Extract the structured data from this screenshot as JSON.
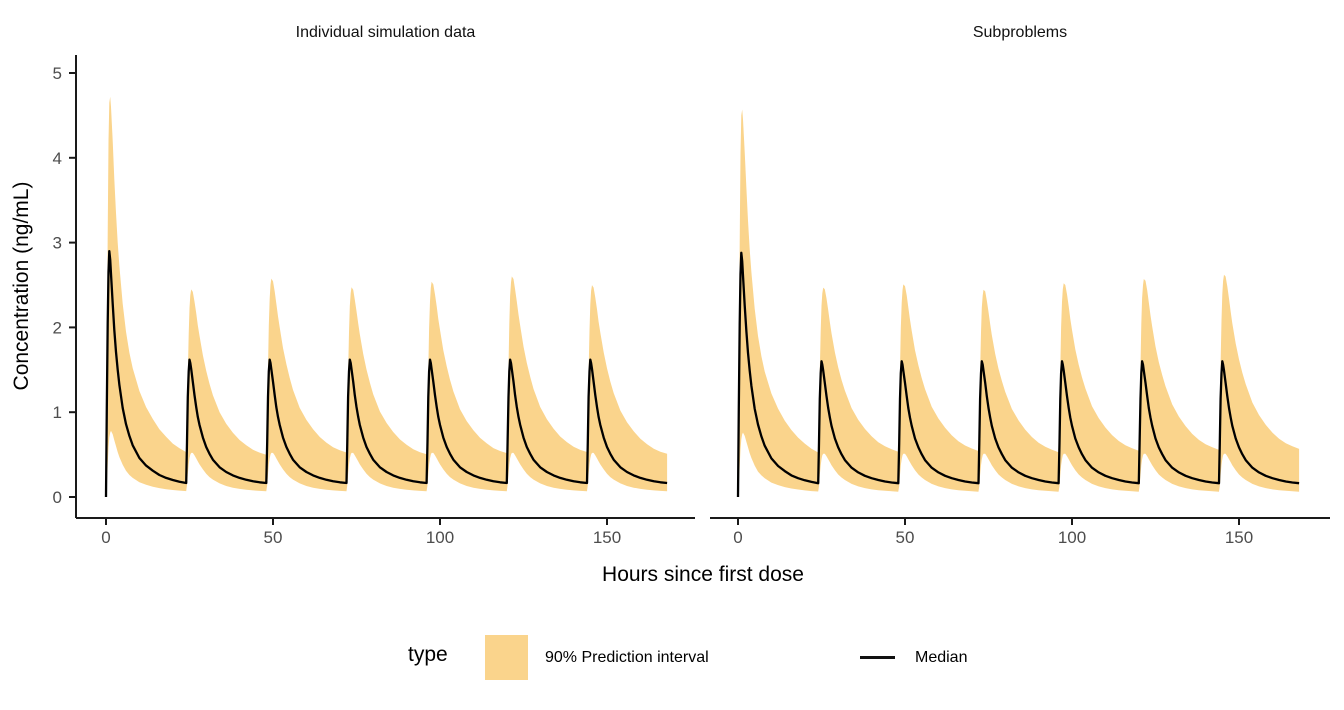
{
  "figure": {
    "facet_titles": [
      "Individual simulation data",
      "Subproblems"
    ],
    "x_title": "Hours since first dose",
    "y_title": "Concentration (ng/mL)",
    "legend": {
      "title": "type",
      "ribbon_label": "90% Prediction interval",
      "median_label": "Median"
    },
    "colors": {
      "ribbon": "#FAD48C",
      "median": "#000000",
      "axis": "#1A1A1A",
      "tick_label": "#4D4D4D"
    }
  },
  "chart_data": {
    "type": "area",
    "title": "",
    "xlabel": "Hours since first dose",
    "ylabel": "Concentration (ng/mL)",
    "xlim": [
      0,
      168
    ],
    "ylim": [
      0,
      5
    ],
    "x_ticks": [
      0,
      50,
      100,
      150
    ],
    "y_ticks": [
      0,
      1,
      2,
      3,
      4,
      5
    ],
    "grid": false,
    "legend_position": "bottom",
    "legend_entries": [
      "90% Prediction interval",
      "Median"
    ],
    "dose_interval_hours": 24,
    "dose_times": [
      0,
      24,
      48,
      72,
      96,
      120,
      144
    ],
    "t_rel": [
      0,
      0.25,
      0.5,
      0.75,
      1,
      1.25,
      1.5,
      2,
      2.5,
      3,
      3.5,
      4,
      5,
      6,
      7,
      8,
      10,
      12,
      14,
      16,
      18,
      20,
      22,
      24
    ],
    "panels": [
      {
        "title": "Individual simulation data",
        "series": {
          "median_first": [
            0,
            1.05,
            2.05,
            2.65,
            2.9,
            2.8,
            2.63,
            2.28,
            1.97,
            1.71,
            1.5,
            1.32,
            1.05,
            0.86,
            0.72,
            0.61,
            0.46,
            0.37,
            0.31,
            0.26,
            0.225,
            0.2,
            0.18,
            0.165
          ],
          "median_ss": [
            0.165,
            0.65,
            1.18,
            1.48,
            1.62,
            1.58,
            1.51,
            1.36,
            1.2,
            1.06,
            0.945,
            0.85,
            0.7,
            0.59,
            0.51,
            0.44,
            0.35,
            0.295,
            0.255,
            0.225,
            0.203,
            0.185,
            0.173,
            0.165
          ],
          "hi_first": [
            0.02,
            1.6,
            3.1,
            4.2,
            4.65,
            4.72,
            4.6,
            4.2,
            3.75,
            3.35,
            3.0,
            2.72,
            2.28,
            1.95,
            1.7,
            1.52,
            1.25,
            1.06,
            0.92,
            0.8,
            0.71,
            0.63,
            0.575,
            0.53
          ],
          "hi_ss": [
            0.53,
            0.9,
            1.5,
            2.0,
            2.32,
            2.48,
            2.55,
            2.52,
            2.4,
            2.26,
            2.11,
            1.98,
            1.74,
            1.55,
            1.39,
            1.25,
            1.04,
            0.9,
            0.79,
            0.7,
            0.635,
            0.58,
            0.545,
            0.52
          ],
          "lo_first": [
            0,
            0.14,
            0.38,
            0.58,
            0.7,
            0.76,
            0.78,
            0.74,
            0.67,
            0.6,
            0.53,
            0.47,
            0.38,
            0.31,
            0.26,
            0.225,
            0.175,
            0.145,
            0.122,
            0.105,
            0.092,
            0.082,
            0.075,
            0.07
          ],
          "lo_ss": [
            0.07,
            0.14,
            0.27,
            0.385,
            0.455,
            0.5,
            0.52,
            0.52,
            0.49,
            0.455,
            0.42,
            0.385,
            0.325,
            0.275,
            0.235,
            0.205,
            0.16,
            0.13,
            0.11,
            0.095,
            0.085,
            0.078,
            0.072,
            0.068
          ]
        },
        "hi_scale": [
          1,
          0.96,
          1.01,
          0.97,
          0.995,
          1.02,
          0.98
        ]
      },
      {
        "title": "Subproblems",
        "series": {
          "median_first": [
            0,
            1.05,
            2.04,
            2.63,
            2.88,
            2.78,
            2.61,
            2.26,
            1.95,
            1.7,
            1.49,
            1.31,
            1.04,
            0.855,
            0.715,
            0.605,
            0.455,
            0.365,
            0.305,
            0.255,
            0.222,
            0.197,
            0.178,
            0.163
          ],
          "median_ss": [
            0.163,
            0.64,
            1.16,
            1.46,
            1.6,
            1.56,
            1.49,
            1.345,
            1.19,
            1.05,
            0.935,
            0.84,
            0.69,
            0.585,
            0.505,
            0.435,
            0.345,
            0.29,
            0.25,
            0.222,
            0.2,
            0.183,
            0.171,
            0.163
          ],
          "hi_first": [
            0.02,
            1.55,
            3.0,
            4.05,
            4.5,
            4.57,
            4.45,
            4.07,
            3.64,
            3.26,
            2.92,
            2.65,
            2.22,
            1.9,
            1.66,
            1.48,
            1.22,
            1.04,
            0.9,
            0.79,
            0.7,
            0.63,
            0.57,
            0.525
          ],
          "hi_ss": [
            0.545,
            0.92,
            1.52,
            2.0,
            2.3,
            2.45,
            2.52,
            2.5,
            2.39,
            2.25,
            2.1,
            1.97,
            1.74,
            1.56,
            1.41,
            1.28,
            1.07,
            0.93,
            0.82,
            0.73,
            0.66,
            0.61,
            0.575,
            0.545
          ],
          "lo_first": [
            0,
            0.13,
            0.36,
            0.56,
            0.68,
            0.74,
            0.76,
            0.72,
            0.65,
            0.585,
            0.515,
            0.46,
            0.37,
            0.3,
            0.255,
            0.22,
            0.17,
            0.14,
            0.117,
            0.1,
            0.088,
            0.078,
            0.07,
            0.065
          ],
          "lo_ss": [
            0.065,
            0.13,
            0.26,
            0.375,
            0.445,
            0.49,
            0.51,
            0.51,
            0.48,
            0.445,
            0.41,
            0.375,
            0.315,
            0.265,
            0.23,
            0.2,
            0.155,
            0.125,
            0.105,
            0.09,
            0.08,
            0.073,
            0.068,
            0.063
          ]
        },
        "hi_scale": [
          1,
          0.98,
          0.995,
          0.97,
          1.0,
          1.02,
          1.04
        ]
      }
    ]
  }
}
